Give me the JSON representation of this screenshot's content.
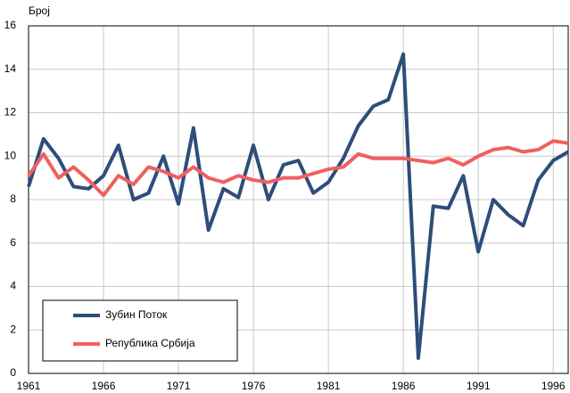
{
  "chart_data": {
    "type": "line",
    "y_label": "Број",
    "x": [
      1961,
      1962,
      1963,
      1964,
      1965,
      1966,
      1967,
      1968,
      1969,
      1970,
      1971,
      1972,
      1973,
      1974,
      1975,
      1976,
      1977,
      1978,
      1979,
      1980,
      1981,
      1982,
      1983,
      1984,
      1985,
      1986,
      1987,
      1988,
      1989,
      1990,
      1991,
      1992,
      1993,
      1994,
      1995,
      1996,
      1997
    ],
    "series": [
      {
        "name": "Зубин Поток",
        "color": "#2e4d7b",
        "values": [
          8.6,
          10.8,
          9.9,
          8.6,
          8.5,
          9.1,
          10.5,
          8.0,
          8.3,
          10.0,
          7.8,
          11.3,
          6.6,
          8.5,
          8.1,
          10.5,
          8.0,
          9.6,
          9.8,
          8.3,
          8.8,
          9.9,
          11.4,
          12.3,
          12.6,
          14.7,
          0.7,
          7.7,
          7.6,
          9.1,
          5.6,
          8.0,
          7.3,
          6.8,
          8.9,
          9.8,
          10.2
        ]
      },
      {
        "name": "Република Србија",
        "color": "#f0605f",
        "values": [
          9.1,
          10.1,
          9.0,
          9.5,
          8.9,
          8.2,
          9.1,
          8.7,
          9.5,
          9.3,
          9.0,
          9.5,
          9.0,
          8.8,
          9.1,
          8.9,
          8.8,
          9.0,
          9.0,
          9.2,
          9.4,
          9.5,
          10.1,
          9.9,
          9.9,
          9.9,
          9.8,
          9.7,
          9.9,
          9.6,
          10.0,
          10.3,
          10.4,
          10.2,
          10.3,
          10.7,
          10.6
        ]
      }
    ],
    "xlim": [
      1961,
      1997
    ],
    "xticks": [
      1961,
      1966,
      1971,
      1976,
      1981,
      1986,
      1991,
      1996
    ],
    "ylim": [
      0,
      16
    ],
    "yticks": [
      0,
      2,
      4,
      6,
      8,
      10,
      12,
      14,
      16
    ],
    "grid": true
  }
}
